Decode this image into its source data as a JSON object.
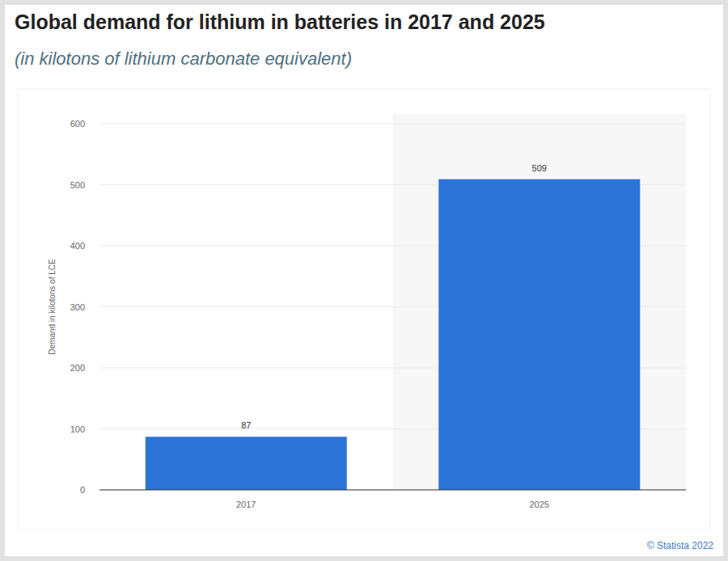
{
  "chart_data": {
    "type": "bar",
    "title": "Global demand for lithium in batteries in 2017 and 2025",
    "subtitle": "(in kilotons of lithium carbonate equivalent)",
    "y_label": "Demand in kilotons of LCE",
    "source": "© Statista 2022",
    "categories": [
      "2017",
      "2025"
    ],
    "values": [
      87,
      509
    ],
    "color": "#2c74d8",
    "ylim": [
      0,
      600
    ],
    "yticks": [
      0,
      100,
      200,
      300,
      400,
      500,
      600
    ],
    "grid": true,
    "data_labels": true
  }
}
